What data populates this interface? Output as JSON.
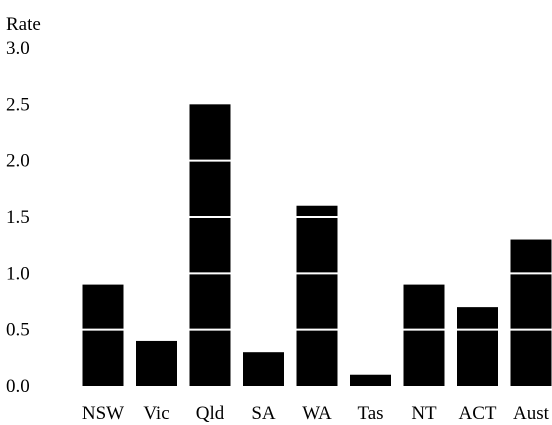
{
  "chart_data": {
    "type": "bar",
    "ylabel": "Rate",
    "categories": [
      "NSW",
      "Vic",
      "Qld",
      "SA",
      "WA",
      "Tas",
      "NT",
      "ACT",
      "Aust"
    ],
    "values": [
      0.9,
      0.4,
      2.5,
      0.3,
      1.6,
      0.1,
      0.9,
      0.7,
      1.3
    ],
    "ylim": [
      0,
      3.0
    ],
    "yticks": [
      "0.0",
      "0.5",
      "1.0",
      "1.5",
      "2.0",
      "2.5",
      "3.0"
    ],
    "grid": "white gridlines over bars",
    "bar_color": "#000000",
    "gridline_color": "#ffffff"
  }
}
